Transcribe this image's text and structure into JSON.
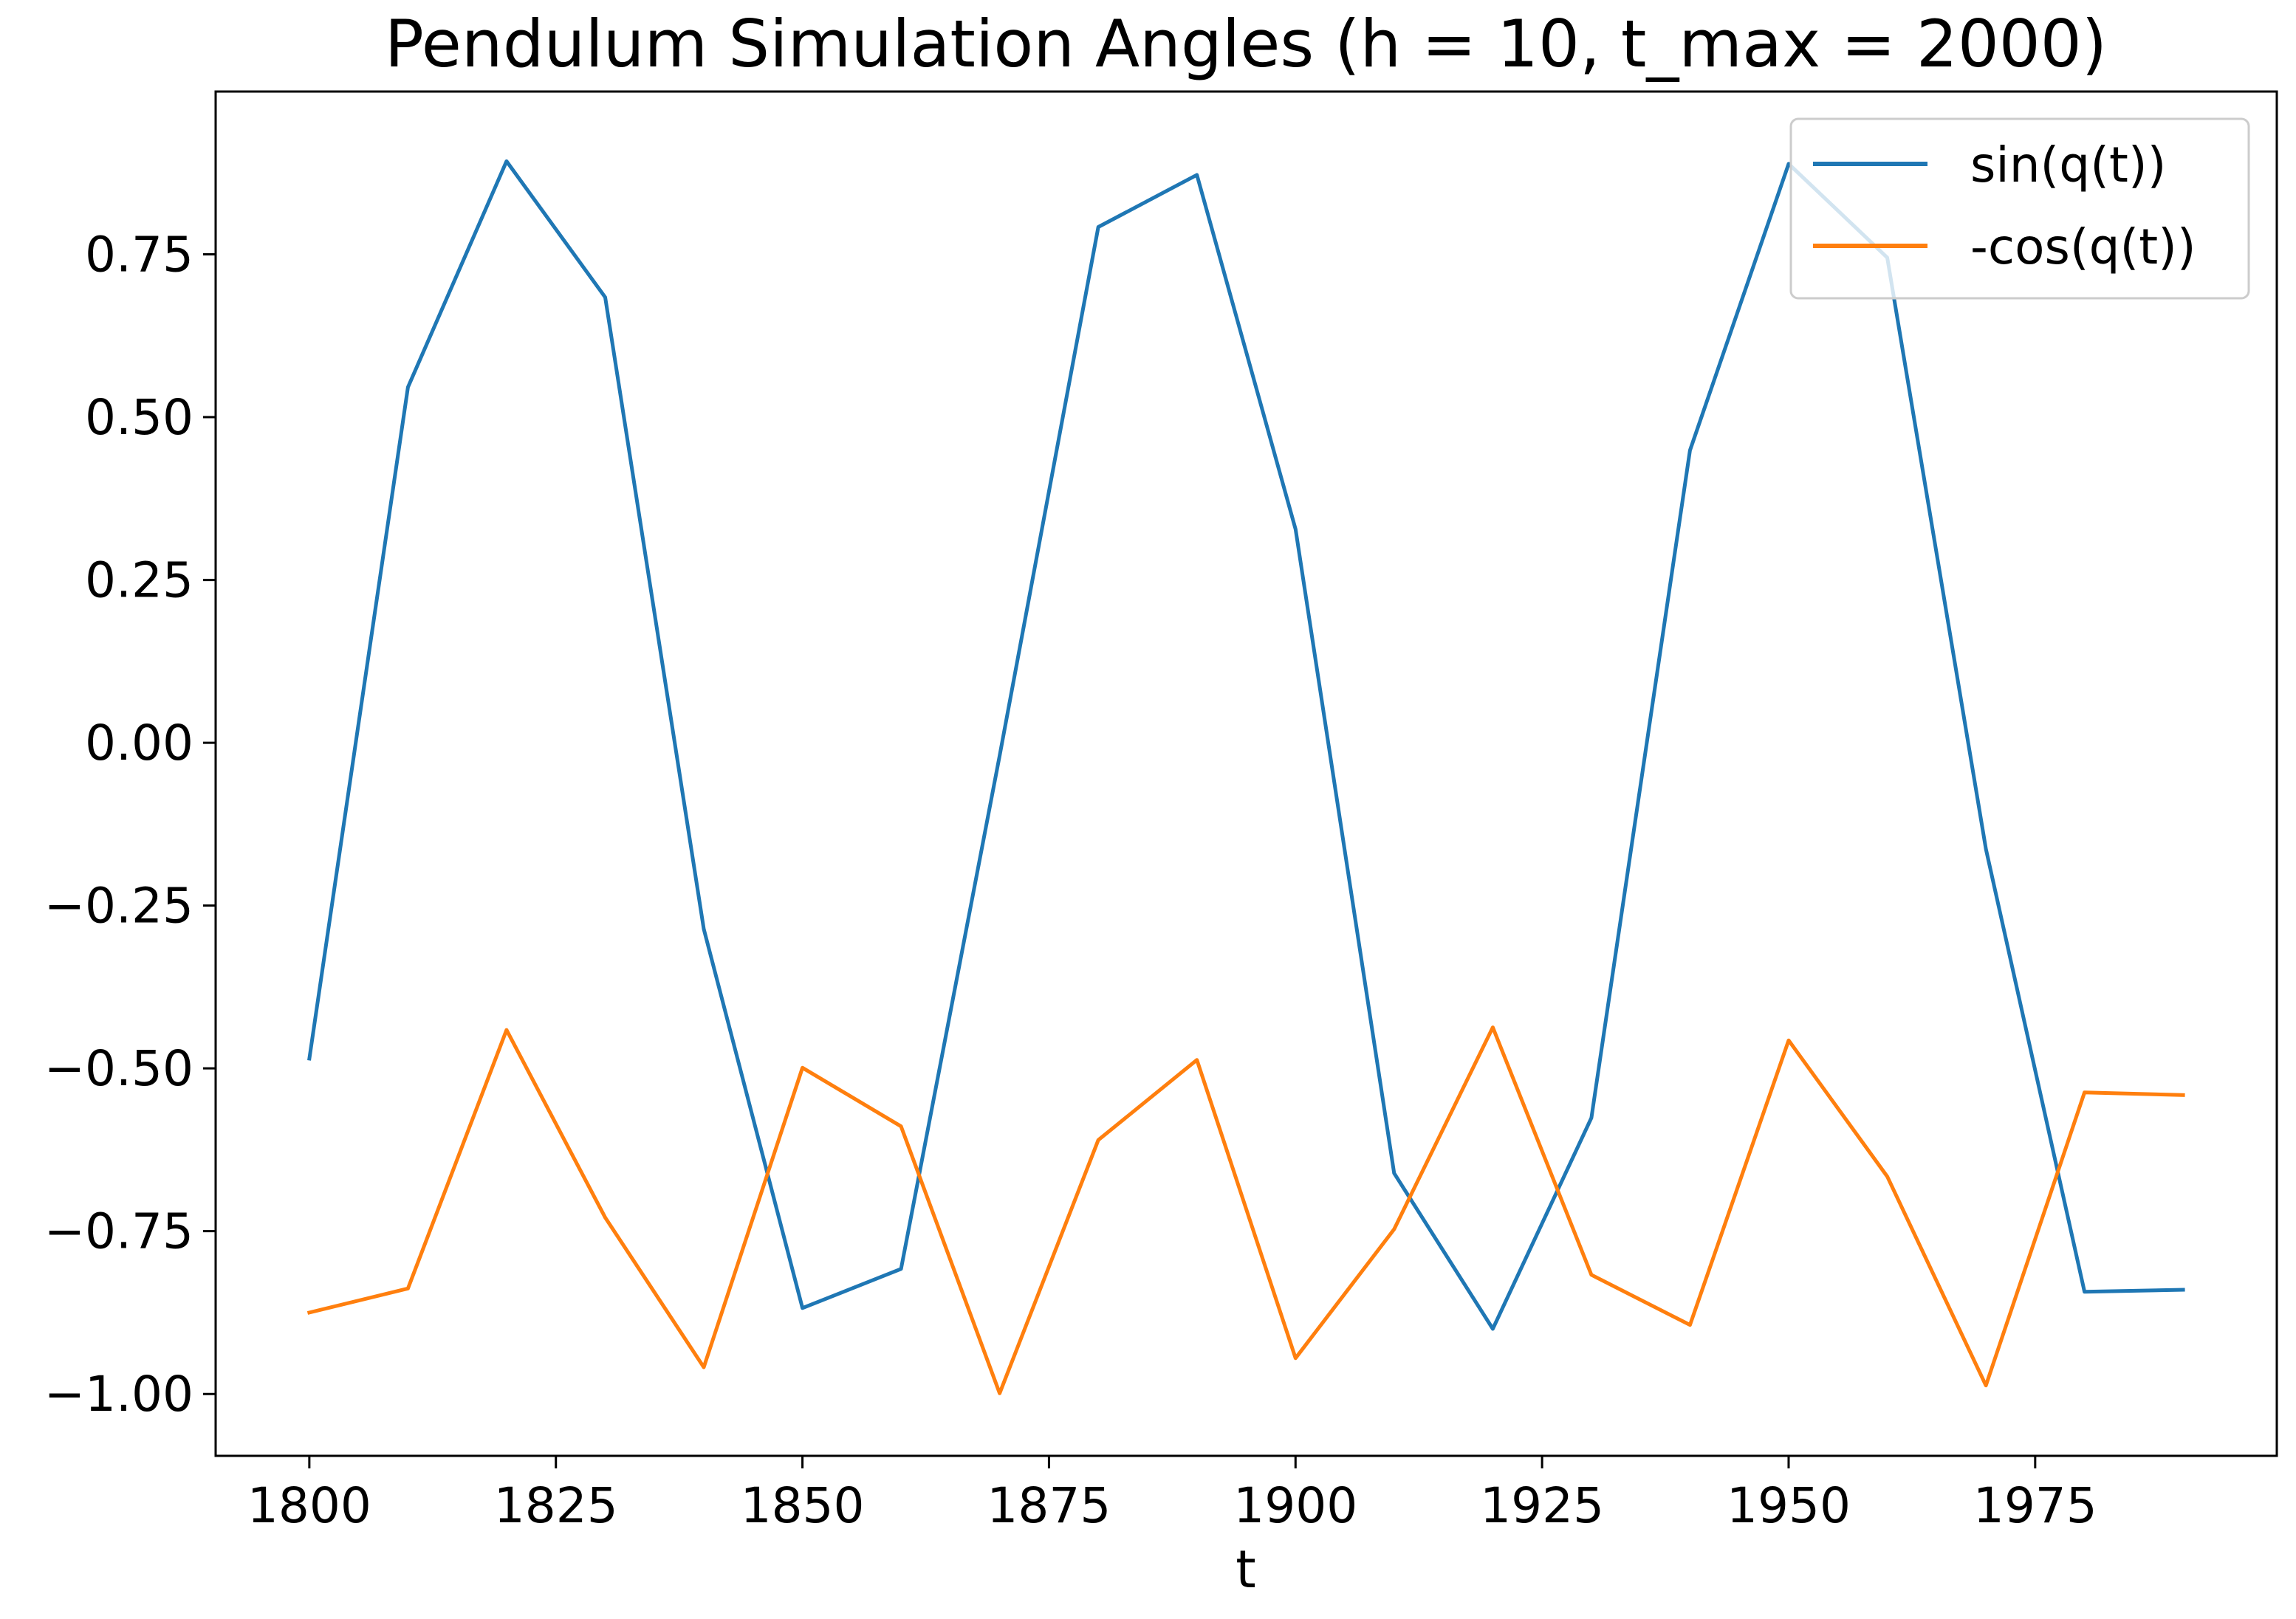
{
  "chart_data": {
    "type": "line",
    "title": "Pendulum Simulation Angles (h = 10, t_max = 2000)",
    "xlabel": "t",
    "ylabel": "",
    "xlim": [
      1790.5,
      1999.5
    ],
    "ylim": [
      -1.095,
      1.0
    ],
    "x_ticks": [
      1800,
      1825,
      1850,
      1875,
      1900,
      1925,
      1950,
      1975
    ],
    "x_tick_labels": [
      "1800",
      "1825",
      "1850",
      "1875",
      "1900",
      "1925",
      "1950",
      "1975"
    ],
    "y_ticks": [
      0.75,
      0.5,
      0.25,
      0.0,
      -0.25,
      -0.5,
      -0.75,
      -1.0
    ],
    "y_tick_labels": [
      "0.75",
      "0.50",
      "0.25",
      "0.00",
      "−0.25",
      "−0.50",
      "−0.75",
      "−1.00"
    ],
    "grid": false,
    "legend_position": "top-right",
    "x": [
      1800,
      1810,
      1820,
      1830,
      1840,
      1850,
      1860,
      1870,
      1880,
      1890,
      1900,
      1910,
      1920,
      1930,
      1940,
      1950,
      1960,
      1970,
      1980,
      1990
    ],
    "series": [
      {
        "name": "sin(q(t))",
        "color": "#1f77b4",
        "values": [
          -0.485,
          0.546,
          0.893,
          0.684,
          -0.286,
          -0.868,
          -0.808,
          -0.02,
          0.792,
          0.872,
          0.328,
          -0.661,
          -0.9,
          -0.576,
          0.449,
          0.889,
          0.745,
          -0.163,
          -0.843,
          -0.84
        ]
      },
      {
        "name": "-cos(q(t))",
        "color": "#ff7f0e",
        "values": [
          -0.875,
          -0.838,
          -0.441,
          -0.729,
          -0.959,
          -0.499,
          -0.589,
          -0.999,
          -0.61,
          -0.487,
          -0.945,
          -0.747,
          -0.437,
          -0.817,
          -0.894,
          -0.457,
          -0.666,
          -0.987,
          -0.537,
          -0.541
        ]
      }
    ]
  }
}
